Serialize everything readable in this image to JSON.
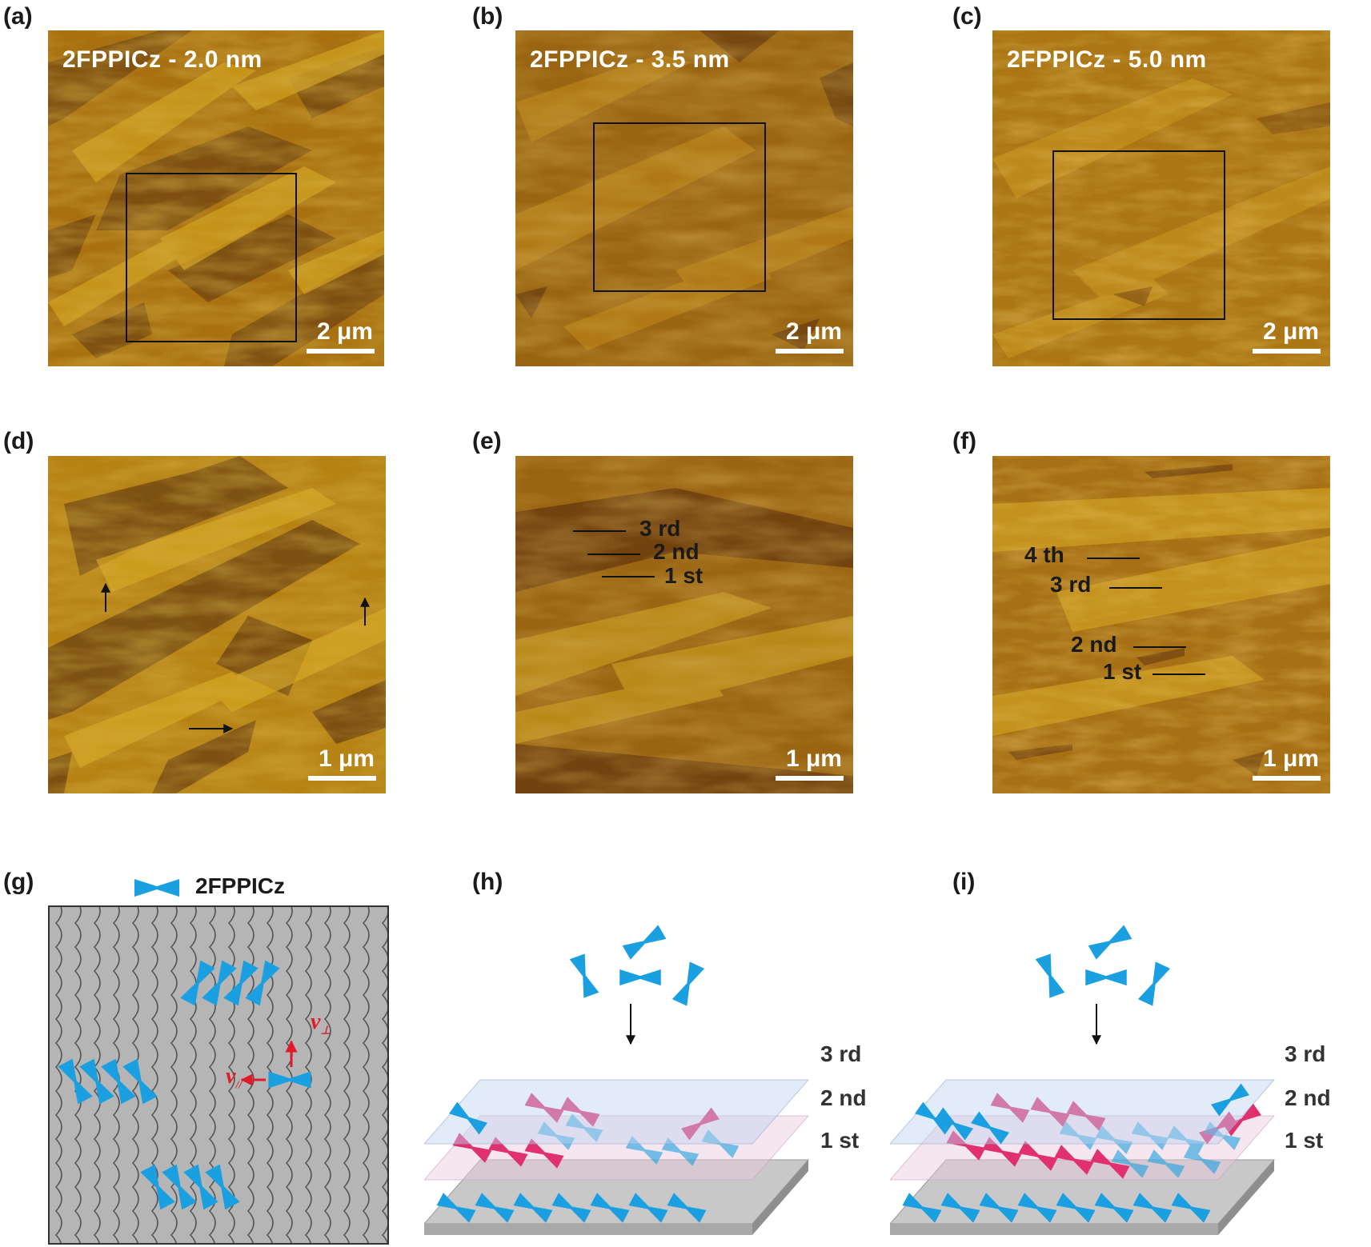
{
  "panel_labels": [
    "(a)",
    "(b)",
    "(c)",
    "(d)",
    "(e)",
    "(f)",
    "(g)",
    "(h)",
    "(i)"
  ],
  "afm_titles": {
    "a": "2FPPICz - 2.0 nm",
    "b": "2FPPICz - 3.5 nm",
    "c": "2FPPICz - 5.0 nm"
  },
  "scale_bars": {
    "top": "2 μm",
    "middle": "1 μm"
  },
  "layer_labels_e": [
    "3 rd",
    "2 nd",
    "1 st"
  ],
  "layer_labels_f": [
    "4 th",
    "3 rd",
    "2 nd",
    "1 st"
  ],
  "legend": {
    "molecule_name": "2FPPICz"
  },
  "velocity_labels": {
    "perp": "v",
    "perp_sub": "⊥",
    "par": "v",
    "par_sub": "//"
  },
  "stack_labels_h": [
    "3 rd",
    "2 nd",
    "1 st"
  ],
  "stack_labels_i": [
    "3 rd",
    "2 nd",
    "1 st"
  ],
  "colors": {
    "molecule_blue": "#1aa0e0",
    "molecule_pink": "#e0306e",
    "substrate_gray": "#b5b5b5",
    "velocity_red": "#e01a2a",
    "afm_base": "#a8700e",
    "afm_dark": "#7a4a10",
    "afm_bright": "#d6a520"
  }
}
